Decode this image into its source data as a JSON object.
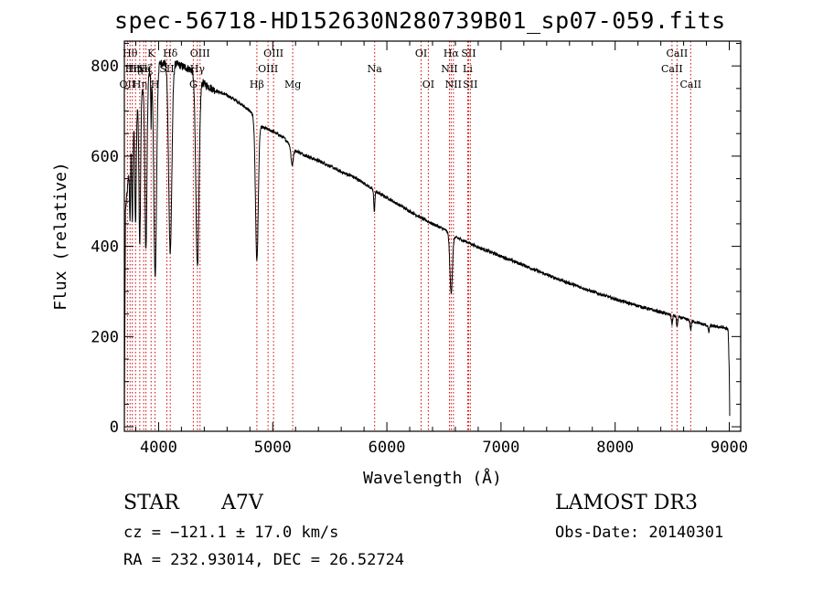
{
  "header": {
    "title": "spec-56718-HD152630N280739B01_sp07-059.fits"
  },
  "info": {
    "object_type": "STAR",
    "spectral_class": "A7V",
    "survey": "LAMOST DR3",
    "cz": "cz = −121.1 ± 17.0 km/s",
    "obs_date": "Obs-Date: 20140301",
    "radec": "RA = 232.93014, DEC =  26.52724"
  },
  "chart_data": {
    "type": "line",
    "title": "spec-56718-HD152630N280739B01_sp07-059.fits",
    "xlabel": "Wavelength (Å)",
    "ylabel": "Flux (relative)",
    "xlim": [
      3700,
      9100
    ],
    "ylim": [
      -10,
      855
    ],
    "x_ticks": [
      4000,
      5000,
      6000,
      7000,
      8000,
      9000
    ],
    "y_ticks": [
      0,
      200,
      400,
      600,
      800
    ],
    "line_color": "#000000",
    "marker_color": "#cc0000",
    "continuum": [
      {
        "x": 3700,
        "y": 0
      },
      {
        "x": 3705,
        "y": 250
      },
      {
        "x": 3710,
        "y": 480
      },
      {
        "x": 3740,
        "y": 560
      },
      {
        "x": 3760,
        "y": 640
      },
      {
        "x": 3800,
        "y": 700
      },
      {
        "x": 3850,
        "y": 740
      },
      {
        "x": 3900,
        "y": 780
      },
      {
        "x": 3950,
        "y": 795
      },
      {
        "x": 4000,
        "y": 805
      },
      {
        "x": 4100,
        "y": 810
      },
      {
        "x": 4200,
        "y": 800
      },
      {
        "x": 4300,
        "y": 790
      },
      {
        "x": 4400,
        "y": 760
      },
      {
        "x": 4500,
        "y": 745
      },
      {
        "x": 4600,
        "y": 735
      },
      {
        "x": 4700,
        "y": 720
      },
      {
        "x": 4800,
        "y": 700
      },
      {
        "x": 4900,
        "y": 665
      },
      {
        "x": 5000,
        "y": 655
      },
      {
        "x": 5100,
        "y": 640
      },
      {
        "x": 5200,
        "y": 612
      },
      {
        "x": 5300,
        "y": 600
      },
      {
        "x": 5400,
        "y": 590
      },
      {
        "x": 5500,
        "y": 578
      },
      {
        "x": 5600,
        "y": 565
      },
      {
        "x": 5700,
        "y": 555
      },
      {
        "x": 5800,
        "y": 540
      },
      {
        "x": 5900,
        "y": 522
      },
      {
        "x": 6000,
        "y": 508
      },
      {
        "x": 6100,
        "y": 493
      },
      {
        "x": 6200,
        "y": 478
      },
      {
        "x": 6300,
        "y": 463
      },
      {
        "x": 6400,
        "y": 450
      },
      {
        "x": 6500,
        "y": 438
      },
      {
        "x": 6600,
        "y": 420
      },
      {
        "x": 6700,
        "y": 410
      },
      {
        "x": 6800,
        "y": 398
      },
      {
        "x": 6900,
        "y": 388
      },
      {
        "x": 7000,
        "y": 378
      },
      {
        "x": 7200,
        "y": 358
      },
      {
        "x": 7400,
        "y": 337
      },
      {
        "x": 7600,
        "y": 318
      },
      {
        "x": 7800,
        "y": 300
      },
      {
        "x": 8000,
        "y": 283
      },
      {
        "x": 8200,
        "y": 268
      },
      {
        "x": 8400,
        "y": 254
      },
      {
        "x": 8600,
        "y": 240
      },
      {
        "x": 8800,
        "y": 225
      },
      {
        "x": 8950,
        "y": 220
      },
      {
        "x": 8990,
        "y": 215
      },
      {
        "x": 9000,
        "y": 120
      },
      {
        "x": 9005,
        "y": 0
      }
    ],
    "absorption_lines": [
      {
        "x": 3750,
        "depth": 150,
        "width": 4
      },
      {
        "x": 3770,
        "depth": 200,
        "width": 5
      },
      {
        "x": 3798,
        "depth": 250,
        "width": 6
      },
      {
        "x": 3835,
        "depth": 320,
        "width": 7
      },
      {
        "x": 3889,
        "depth": 380,
        "width": 9
      },
      {
        "x": 3934,
        "depth": 120,
        "width": 3
      },
      {
        "x": 3970,
        "depth": 470,
        "width": 12
      },
      {
        "x": 4102,
        "depth": 420,
        "width": 14
      },
      {
        "x": 4340,
        "depth": 420,
        "width": 14
      },
      {
        "x": 4861,
        "depth": 310,
        "width": 12
      },
      {
        "x": 5170,
        "depth": 40,
        "width": 10
      },
      {
        "x": 5890,
        "depth": 45,
        "width": 5
      },
      {
        "x": 6563,
        "depth": 130,
        "width": 11
      },
      {
        "x": 8498,
        "depth": 20,
        "width": 5
      },
      {
        "x": 8542,
        "depth": 22,
        "width": 5
      },
      {
        "x": 8662,
        "depth": 20,
        "width": 5
      },
      {
        "x": 8820,
        "depth": 15,
        "width": 5
      }
    ],
    "line_markers": [
      {
        "x": 3727,
        "label": "OII",
        "row": 3
      },
      {
        "x": 3750,
        "label": "Hθ",
        "row": 1
      },
      {
        "x": 3770,
        "label": "Hη",
        "row": 2
      },
      {
        "x": 3798,
        "label": "Hη",
        "row": 2
      },
      {
        "x": 3835,
        "label": "Hη",
        "row": 3
      },
      {
        "x": 3869,
        "label": "Ne",
        "row": 2
      },
      {
        "x": 3889,
        "label": "Hζ",
        "row": 2
      },
      {
        "x": 3934,
        "label": "K",
        "row": 1
      },
      {
        "x": 3969,
        "label": "H",
        "row": 3
      },
      {
        "x": 4072,
        "label": "SII",
        "row": 2
      },
      {
        "x": 4102,
        "label": "Hδ",
        "row": 1
      },
      {
        "x": 4304,
        "label": "G",
        "row": 3
      },
      {
        "x": 4340,
        "label": "Hγ",
        "row": 2
      },
      {
        "x": 4363,
        "label": "OIII",
        "row": 1
      },
      {
        "x": 4861,
        "label": "Hβ",
        "row": 3
      },
      {
        "x": 4959,
        "label": "OIII",
        "row": 2
      },
      {
        "x": 5007,
        "label": "OIII",
        "row": 1
      },
      {
        "x": 5175,
        "label": "Mg",
        "row": 3
      },
      {
        "x": 5893,
        "label": "Na",
        "row": 2
      },
      {
        "x": 6300,
        "label": "OI",
        "row": 1
      },
      {
        "x": 6363,
        "label": "OI",
        "row": 3
      },
      {
        "x": 6548,
        "label": "NII",
        "row": 2
      },
      {
        "x": 6563,
        "label": "Hα",
        "row": 1
      },
      {
        "x": 6583,
        "label": "NII",
        "row": 3
      },
      {
        "x": 6708,
        "label": "Li",
        "row": 2
      },
      {
        "x": 6716,
        "label": "SII",
        "row": 1
      },
      {
        "x": 6731,
        "label": "SII",
        "row": 3
      },
      {
        "x": 8498,
        "label": "CaII",
        "row": 2
      },
      {
        "x": 8542,
        "label": "CaII",
        "row": 1
      },
      {
        "x": 8662,
        "label": "CaII",
        "row": 3
      }
    ]
  }
}
